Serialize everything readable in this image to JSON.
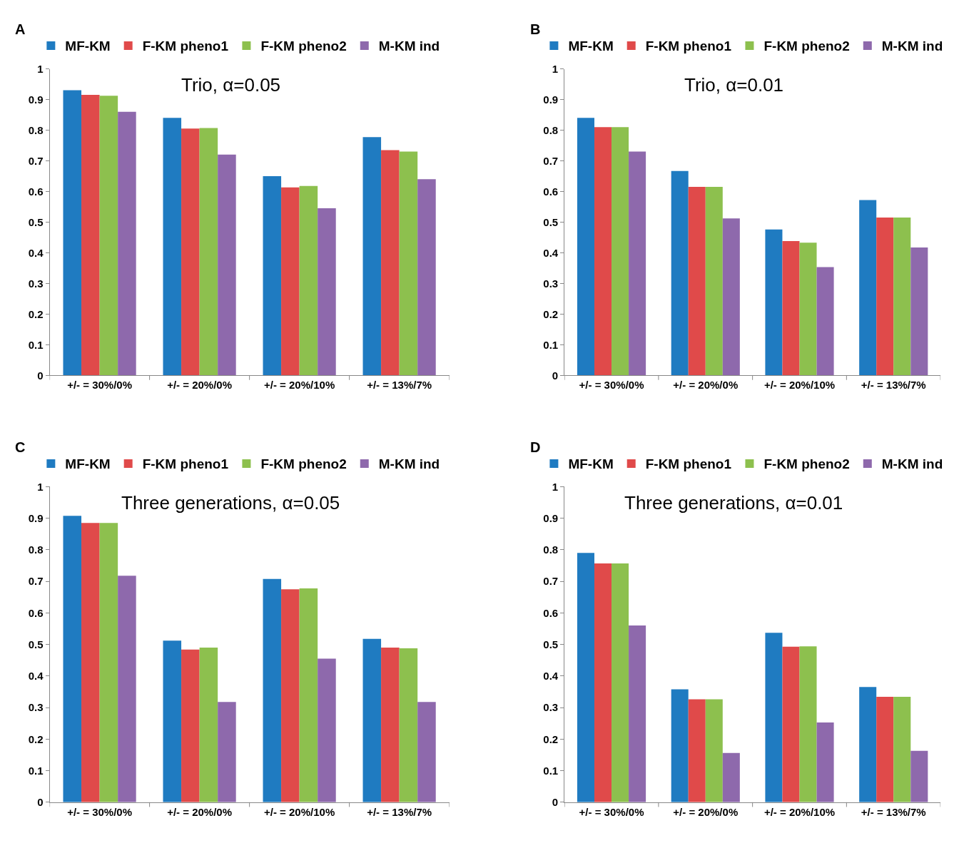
{
  "chart_data": [
    {
      "type": "bar",
      "title": "Trio, α=0.05",
      "annotations": [
        "A"
      ],
      "categories": [
        "+/- = 30%/0%",
        "+/- = 20%/0%",
        "+/- = 20%/10%",
        "+/- = 13%/7%"
      ],
      "ylim": [
        0,
        1
      ],
      "yticks": [
        0,
        0.1,
        0.2,
        0.3,
        0.4,
        0.5,
        0.6,
        0.7,
        0.8,
        0.9,
        1
      ],
      "legend": "top",
      "series": [
        {
          "name": "MF-KM",
          "color": "#1f7bc1",
          "values": [
            0.93,
            0.84,
            0.65,
            0.777
          ]
        },
        {
          "name": "F-KM pheno1",
          "color": "#e04a4a",
          "values": [
            0.915,
            0.805,
            0.613,
            0.735
          ]
        },
        {
          "name": "F-KM pheno2",
          "color": "#8dc04e",
          "values": [
            0.912,
            0.807,
            0.618,
            0.73
          ]
        },
        {
          "name": "M-KM ind",
          "color": "#8e69ac",
          "values": [
            0.86,
            0.72,
            0.545,
            0.64
          ]
        }
      ]
    },
    {
      "type": "bar",
      "title": "Trio, α=0.01",
      "annotations": [
        "B"
      ],
      "categories": [
        "+/- = 30%/0%",
        "+/- = 20%/0%",
        "+/- = 20%/10%",
        "+/- = 13%/7%"
      ],
      "ylim": [
        0,
        1
      ],
      "yticks": [
        0,
        0.1,
        0.2,
        0.3,
        0.4,
        0.5,
        0.6,
        0.7,
        0.8,
        0.9,
        1
      ],
      "legend": "top",
      "series": [
        {
          "name": "MF-KM",
          "color": "#1f7bc1",
          "values": [
            0.84,
            0.667,
            0.476,
            0.572
          ]
        },
        {
          "name": "F-KM pheno1",
          "color": "#e04a4a",
          "values": [
            0.81,
            0.615,
            0.438,
            0.515
          ]
        },
        {
          "name": "F-KM pheno2",
          "color": "#8dc04e",
          "values": [
            0.81,
            0.615,
            0.433,
            0.515
          ]
        },
        {
          "name": "M-KM ind",
          "color": "#8e69ac",
          "values": [
            0.73,
            0.512,
            0.353,
            0.417
          ]
        }
      ]
    },
    {
      "type": "bar",
      "title": "Three generations, α=0.05",
      "annotations": [
        "C"
      ],
      "categories": [
        "+/- = 30%/0%",
        "+/- = 20%/0%",
        "+/- = 20%/10%",
        "+/- = 13%/7%"
      ],
      "ylim": [
        0,
        1
      ],
      "yticks": [
        0,
        0.1,
        0.2,
        0.3,
        0.4,
        0.5,
        0.6,
        0.7,
        0.8,
        0.9,
        1
      ],
      "legend": "top",
      "series": [
        {
          "name": "MF-KM",
          "color": "#1f7bc1",
          "values": [
            0.908,
            0.512,
            0.708,
            0.518
          ]
        },
        {
          "name": "F-KM pheno1",
          "color": "#e04a4a",
          "values": [
            0.885,
            0.484,
            0.675,
            0.49
          ]
        },
        {
          "name": "F-KM pheno2",
          "color": "#8dc04e",
          "values": [
            0.885,
            0.49,
            0.678,
            0.488
          ]
        },
        {
          "name": "M-KM ind",
          "color": "#8e69ac",
          "values": [
            0.718,
            0.318,
            0.455,
            0.318
          ]
        }
      ]
    },
    {
      "type": "bar",
      "title": "Three generations, α=0.01",
      "annotations": [
        "D"
      ],
      "categories": [
        "+/- = 30%/0%",
        "+/- = 20%/0%",
        "+/- = 20%/10%",
        "+/- = 13%/7%"
      ],
      "ylim": [
        0,
        1
      ],
      "yticks": [
        0,
        0.1,
        0.2,
        0.3,
        0.4,
        0.5,
        0.6,
        0.7,
        0.8,
        0.9,
        1
      ],
      "legend": "top",
      "series": [
        {
          "name": "MF-KM",
          "color": "#1f7bc1",
          "values": [
            0.79,
            0.358,
            0.537,
            0.365
          ]
        },
        {
          "name": "F-KM pheno1",
          "color": "#e04a4a",
          "values": [
            0.757,
            0.326,
            0.493,
            0.334
          ]
        },
        {
          "name": "F-KM pheno2",
          "color": "#8dc04e",
          "values": [
            0.757,
            0.326,
            0.494,
            0.334
          ]
        },
        {
          "name": "M-KM ind",
          "color": "#8e69ac",
          "values": [
            0.56,
            0.156,
            0.253,
            0.163
          ]
        }
      ]
    }
  ]
}
